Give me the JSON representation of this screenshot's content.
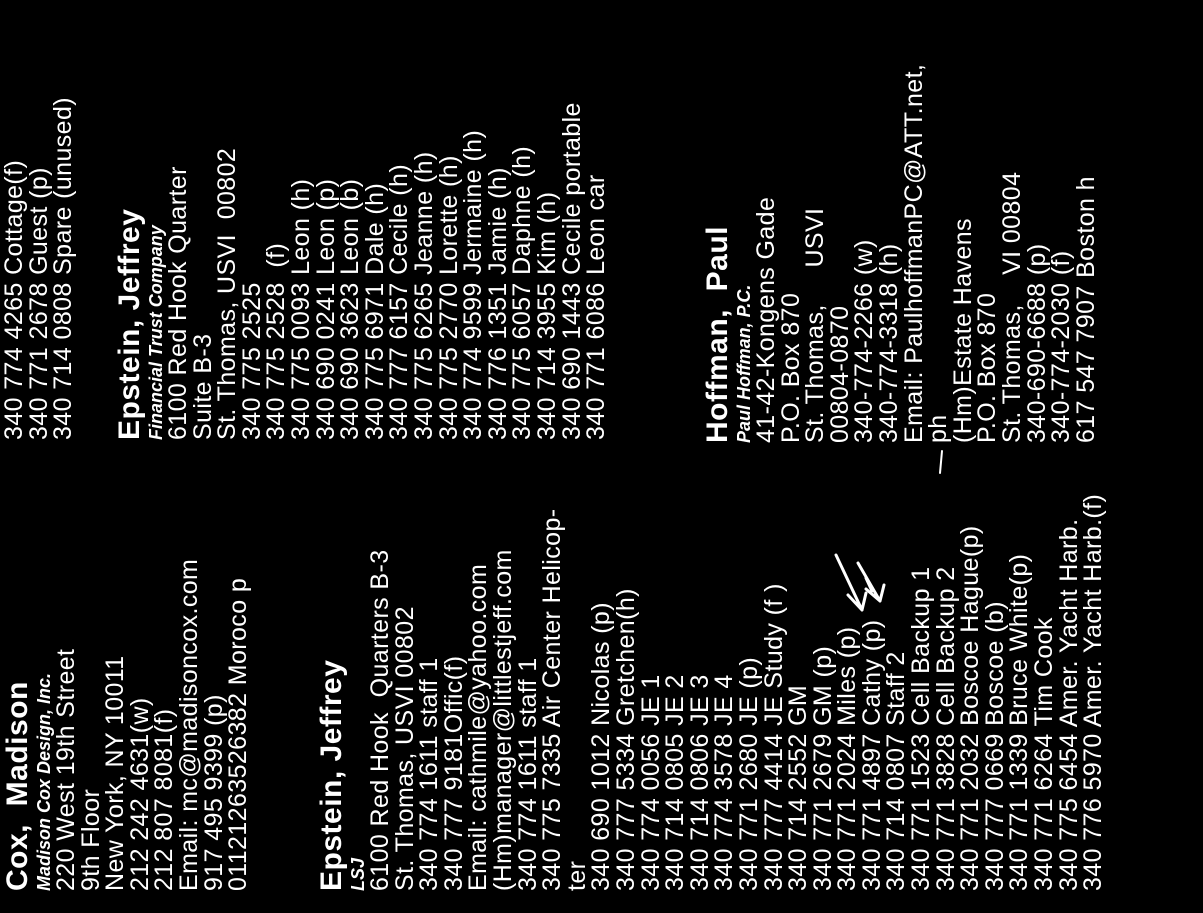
{
  "colors": {
    "background": "#000000",
    "text": "#ffffff"
  },
  "entries": {
    "cox": {
      "heading": "Cox,  Madison",
      "company": "Madison Cox Design, Inc.",
      "lines": [
        "220 West 19th Street",
        "9th Floor",
        "New York, NY 10011",
        "212 242 4631(w)",
        "212 807 8081(f)",
        "Email: mc@madisoncox.com",
        "917 495 9399 (p)",
        "01121263526382 Moroco p"
      ]
    },
    "epstein_lsj": {
      "heading": "Epstein, Jeffrey",
      "company": "LSJ",
      "lines": [
        "6100 Red Hook  Quarters B-3",
        "St. Thomas, USVI 00802",
        "340 774 1611 staff 1",
        "340 777 9181Offic(f)",
        "Email: cathmile@yahoo.com",
        "(Hm)manager@littlestjeff.com",
        "340 774 1611 staff 1",
        "340 775 7335 Air Center Helicop-",
        "ter",
        "340 690 1012 Nicolas (p)",
        "340 777 5334 Gretchen(h)",
        "340 774 0056 JE 1",
        "340 714 0805 JE 2",
        "340 714 0806 JE 3",
        "340 774 3578 JE 4",
        "340 771 2680 JE (p)",
        "340 777 4414 JE Study (f )",
        "340 714 2552 GM",
        "340 771 2679 GM (p)",
        "340 771 2024 Miles (p)",
        "340 771 4897 Cathy (p)",
        "340 714 0807 Staff 2",
        "340 771 1523 Cell Backup 1",
        "340 771 3828 Cell Backup 2",
        "340 771 2032 Boscoe Hague(p)",
        "340 777 0669 Boscoe (b)",
        "340 771 1339 Bruce White(p)",
        "340 771 6264 Tim Cook",
        "340 775 6454 Amer. Yacht Harb.",
        "340 776 5970 Amer. Yacht Harb.(f)"
      ]
    },
    "top_right": {
      "lines": [
        "340 774 4265 Cottage(f)",
        "340 771 2678 Guest (p)",
        "340 714 0808 Spare (unused)"
      ]
    },
    "epstein_ftc": {
      "heading": "Epstein, Jeffrey",
      "company": "Financial Trust Company",
      "lines": [
        "6100 Red Hook Quarter",
        "Suite B-3",
        "St. Thomas, USVI  00802",
        "340 775 2525",
        "340 775 2528  (f)",
        "340 775 0093 Leon (h)",
        "340 690 0241 Leon (p)",
        "340 690 3623 Leon (b)",
        "340 775 6971 Dale (h)",
        "340 777 6157 Cecile (h)",
        "340 775 6265 Jeanne (h)",
        "340 775 2770 Lorette (h)",
        "340 774 9599 Jermaine (h)",
        "340 776 1351 Jamie (h)",
        "340 775 6057 Daphne (h)",
        "340 714 3955 Kim (h)",
        "340 690 1443 Cecile portable",
        "340 771 6086 Leon car"
      ]
    },
    "hoffman": {
      "heading": "Hoffman,  Paul",
      "company": "Paul Hoffman, P.C.",
      "lines": [
        "41-42-Kongens Gade",
        "P.O. Box 870",
        "St. Thomas,     USVI",
        "00804-0870",
        "340-774-2266 (w)",
        "340-774-3318 (h)",
        "Email: PaulhoffmanPC@ATT.net,",
        "ph",
        "(Hm)Estate Havens",
        "P.O. Box 870",
        "St. Thomas,    VI 00804",
        "340-690-6688 (p)",
        "340-774-2030 (f)",
        "617 547 7907 Boston h"
      ]
    }
  }
}
